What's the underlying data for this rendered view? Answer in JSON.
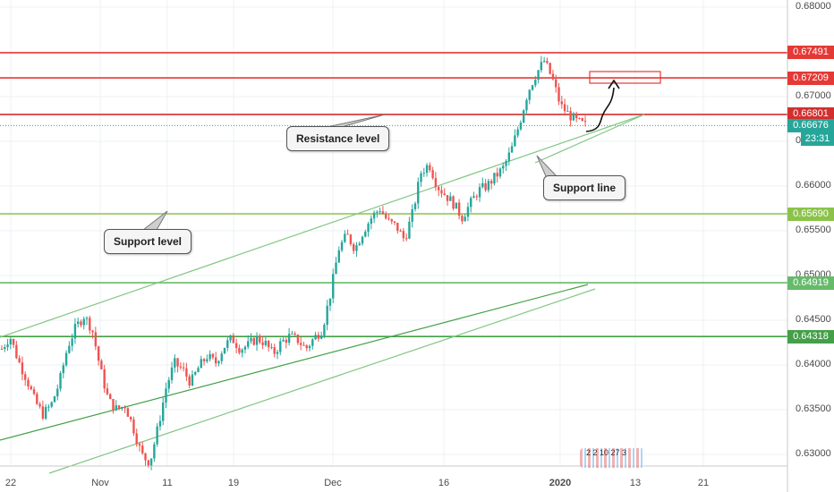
{
  "chart_data": {
    "type": "candlestick",
    "symbol_hint": "",
    "y_axis": {
      "range": [
        0.6275,
        0.6825
      ],
      "ticks": [
        "0.68000",
        "0.67500",
        "0.67000",
        "0.66500",
        "0.66000",
        "0.65500",
        "0.65000",
        "0.64500",
        "0.64000",
        "0.63500",
        "0.63000"
      ]
    },
    "x_axis": {
      "ticks": [
        "22",
        "Nov",
        "11",
        "19",
        "Dec",
        "16",
        "2020",
        "13",
        "21"
      ],
      "bold_ticks": [
        "2020"
      ]
    },
    "horizontal_levels": [
      {
        "value": 0.67491,
        "label": "0.67491",
        "color": "#e53935",
        "kind": "resistance"
      },
      {
        "value": 0.67209,
        "label": "0.67209",
        "color": "#e53935",
        "kind": "resistance"
      },
      {
        "value": 0.66801,
        "label": "0.66801",
        "color": "#d32f2f",
        "kind": "resistance"
      },
      {
        "value": 0.6569,
        "label": "0.65690",
        "color": "#8bc34a",
        "kind": "support"
      },
      {
        "value": 0.64919,
        "label": "0.64919",
        "color": "#66bb6a",
        "kind": "support"
      },
      {
        "value": 0.64318,
        "label": "0.64318",
        "color": "#43a047",
        "kind": "support"
      }
    ],
    "current_price": {
      "label": "0.66676",
      "value": 0.66676,
      "countdown": "23:31",
      "color": "#26a69a"
    },
    "price_path": [
      0.6418,
      0.6432,
      0.6405,
      0.6385,
      0.636,
      0.6345,
      0.6355,
      0.638,
      0.642,
      0.6442,
      0.6455,
      0.644,
      0.6395,
      0.636,
      0.635,
      0.6355,
      0.633,
      0.63,
      0.629,
      0.633,
      0.6375,
      0.6402,
      0.6395,
      0.638,
      0.6398,
      0.641,
      0.6402,
      0.642,
      0.643,
      0.6418,
      0.6422,
      0.643,
      0.6425,
      0.6412,
      0.6425,
      0.6432,
      0.6428,
      0.6418,
      0.643,
      0.644,
      0.648,
      0.653,
      0.6545,
      0.653,
      0.655,
      0.6565,
      0.6575,
      0.656,
      0.6555,
      0.654,
      0.657,
      0.6615,
      0.6625,
      0.66,
      0.659,
      0.658,
      0.6565,
      0.658,
      0.6595,
      0.66,
      0.661,
      0.662,
      0.664,
      0.667,
      0.6705,
      0.6725,
      0.674,
      0.672,
      0.669,
      0.668,
      0.6672,
      0.6668
    ],
    "candle_colors": {
      "up": "#26a69a",
      "down": "#ef5350"
    },
    "trend_lines": [
      {
        "name": "channel-upper",
        "from": [
          "22",
          0.6433
        ],
        "to": [
          "2020",
          0.6665
        ],
        "color": "#81c784"
      },
      {
        "name": "channel-lower",
        "from": [
          "22",
          0.6316
        ],
        "to": [
          "2020",
          0.6472
        ],
        "color": "#43a047"
      },
      {
        "name": "channel-lower-2",
        "from": [
          "22",
          0.6279
        ],
        "to": [
          "2020",
          0.6464
        ],
        "color": "#81c784"
      },
      {
        "name": "support-line",
        "from": [
          "Dec",
          0.6603
        ],
        "to": [
          "13",
          0.6684
        ],
        "color": "#81c784"
      }
    ],
    "annotations": {
      "resistance": "Resistance level",
      "support_level": "Support level",
      "support_line": "Support line",
      "target_box_color": "#e53935"
    },
    "watermark": "2 2 10 27 3"
  }
}
